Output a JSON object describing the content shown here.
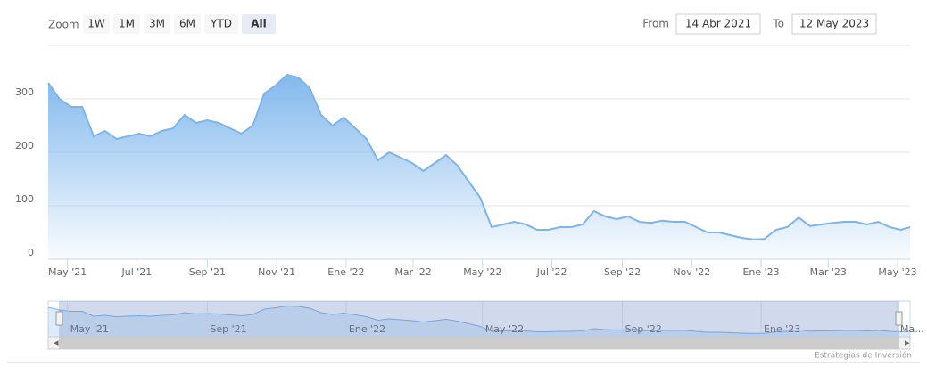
{
  "range_selector": {
    "zoom_label": "Zoom",
    "buttons": [
      "1W",
      "1M",
      "3M",
      "6M",
      "YTD",
      "All"
    ],
    "selected_button": 5,
    "from_label": "From",
    "from_value": "14 Abr 2021",
    "to_label": "To",
    "to_value": "12 May 2023"
  },
  "chart_data": {
    "type": "area",
    "color": "#7cb5ec",
    "x": [
      0,
      10,
      20,
      30,
      40,
      50,
      60,
      70,
      80,
      90,
      100,
      110,
      120,
      130,
      140,
      150,
      160,
      170,
      180,
      190,
      200,
      210,
      220,
      230,
      240,
      250,
      260,
      270,
      280,
      290,
      300,
      310,
      320,
      330,
      340,
      350,
      360,
      370,
      380,
      390,
      400,
      410,
      420,
      430,
      440,
      450,
      460,
      470,
      480,
      490,
      500,
      510,
      520,
      530,
      540,
      550,
      560,
      570,
      580,
      590,
      600,
      610,
      620,
      630,
      640,
      650,
      660,
      670,
      680,
      690,
      700,
      710,
      720,
      730,
      740,
      750,
      758
    ],
    "values": [
      330,
      300,
      285,
      285,
      230,
      240,
      225,
      230,
      235,
      230,
      240,
      245,
      270,
      255,
      260,
      255,
      245,
      235,
      250,
      310,
      325,
      345,
      340,
      320,
      270,
      250,
      265,
      245,
      225,
      185,
      200,
      190,
      180,
      165,
      180,
      195,
      175,
      145,
      115,
      60,
      65,
      70,
      65,
      55,
      55,
      60,
      60,
      65,
      90,
      80,
      75,
      80,
      70,
      68,
      72,
      70,
      70,
      60,
      50,
      50,
      45,
      40,
      37,
      38,
      55,
      60,
      78,
      62,
      65,
      68,
      70,
      70,
      65,
      70,
      60,
      55,
      60
    ],
    "xlim": [
      0,
      758
    ],
    "ylim": [
      0,
      400
    ],
    "yticks": [
      0,
      100,
      200,
      300
    ],
    "grid": true,
    "xticks": [
      {
        "value": 17,
        "label": "May '21"
      },
      {
        "value": 78,
        "label": "Jul '21"
      },
      {
        "value": 140,
        "label": "Sep '21"
      },
      {
        "value": 201,
        "label": "Nov '21"
      },
      {
        "value": 262,
        "label": "Ene '22"
      },
      {
        "value": 321,
        "label": "Mar '22"
      },
      {
        "value": 382,
        "label": "May '22"
      },
      {
        "value": 443,
        "label": "Jul '22"
      },
      {
        "value": 505,
        "label": "Sep '22"
      },
      {
        "value": 566,
        "label": "Nov '22"
      },
      {
        "value": 627,
        "label": "Ene '23"
      },
      {
        "value": 686,
        "label": "Mar '23"
      },
      {
        "value": 747,
        "label": "May '23"
      }
    ],
    "navigator_xticks": [
      {
        "value": 17,
        "label": "May '21"
      },
      {
        "value": 140,
        "label": "Sep '21"
      },
      {
        "value": 262,
        "label": "Ene '22"
      },
      {
        "value": 382,
        "label": "May '22"
      },
      {
        "value": 505,
        "label": "Sep '22"
      },
      {
        "value": 627,
        "label": "Ene '23"
      },
      {
        "value": 747,
        "label": "Ma..."
      }
    ]
  },
  "credits": "Estrategias de Inversión"
}
